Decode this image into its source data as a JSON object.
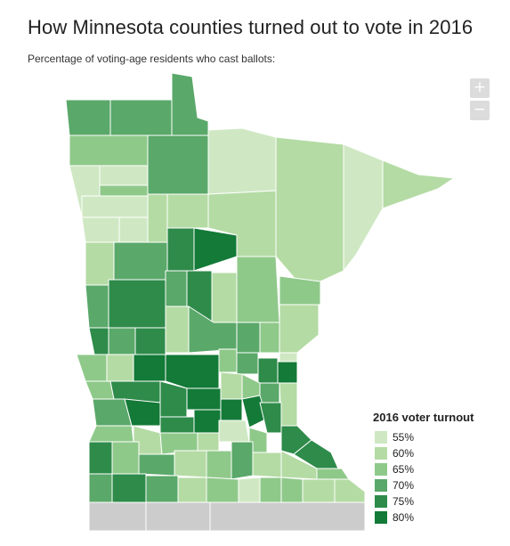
{
  "header": {
    "title": "How Minnesota counties turned out to vote in 2016",
    "subtitle": "Percentage of voting-age residents who cast ballots:"
  },
  "controls": {
    "zoom_in_label": "+",
    "zoom_out_label": "−"
  },
  "legend": {
    "title": "2016 voter turnout",
    "items": [
      {
        "label": "55%",
        "value": 55,
        "color": "#cfe8c3"
      },
      {
        "label": "60%",
        "value": 60,
        "color": "#b4dba4"
      },
      {
        "label": "65%",
        "value": 65,
        "color": "#8fc98a"
      },
      {
        "label": "70%",
        "value": 70,
        "color": "#5aa86a"
      },
      {
        "label": "75%",
        "value": 75,
        "color": "#2e8b4a"
      },
      {
        "label": "80%",
        "value": 80,
        "color": "#137a37"
      }
    ]
  },
  "map": {
    "counties": [
      {
        "turnout": 70
      },
      {
        "turnout": 70
      },
      {
        "turnout": 70
      },
      {
        "turnout": 65
      },
      {
        "turnout": 55
      },
      {
        "turnout": 55
      },
      {
        "turnout": 70
      },
      {
        "turnout": 65
      },
      {
        "turnout": 60
      },
      {
        "turnout": 60
      },
      {
        "turnout": 55
      },
      {
        "turnout": 55
      },
      {
        "turnout": 55
      },
      {
        "turnout": 55
      },
      {
        "turnout": 60
      },
      {
        "turnout": 60
      },
      {
        "turnout": 55
      },
      {
        "turnout": 60
      },
      {
        "turnout": 60
      },
      {
        "turnout": 70
      },
      {
        "turnout": 75
      },
      {
        "turnout": 80
      },
      {
        "turnout": 65
      },
      {
        "turnout": 65
      },
      {
        "turnout": 60
      },
      {
        "turnout": 70
      },
      {
        "turnout": 75
      },
      {
        "turnout": 70
      },
      {
        "turnout": 75
      },
      {
        "turnout": 60
      },
      {
        "turnout": 60
      },
      {
        "turnout": 75
      },
      {
        "turnout": 70
      },
      {
        "turnout": 75
      },
      {
        "turnout": 70
      },
      {
        "turnout": 70
      },
      {
        "turnout": 65
      },
      {
        "turnout": 55
      },
      {
        "turnout": 65
      },
      {
        "turnout": 60
      },
      {
        "turnout": 80
      },
      {
        "turnout": 80
      },
      {
        "turnout": 65
      },
      {
        "turnout": 70
      },
      {
        "turnout": 75
      },
      {
        "turnout": 80
      },
      {
        "turnout": 65
      },
      {
        "turnout": 75
      },
      {
        "turnout": 75
      },
      {
        "turnout": 80
      },
      {
        "turnout": 60
      },
      {
        "turnout": 65
      },
      {
        "turnout": 70
      },
      {
        "turnout": 60
      },
      {
        "turnout": 70
      },
      {
        "turnout": 80
      },
      {
        "turnout": 75
      },
      {
        "turnout": 80
      },
      {
        "turnout": 80
      },
      {
        "turnout": 80
      },
      {
        "turnout": 75
      },
      {
        "turnout": 65
      },
      {
        "turnout": 60
      },
      {
        "turnout": 65
      },
      {
        "turnout": 60
      },
      {
        "turnout": 55
      },
      {
        "turnout": 65
      },
      {
        "turnout": 75
      },
      {
        "turnout": 75
      },
      {
        "turnout": 75
      },
      {
        "turnout": 65
      },
      {
        "turnout": 70
      },
      {
        "turnout": 60
      },
      {
        "turnout": 65
      },
      {
        "turnout": 70
      },
      {
        "turnout": 60
      },
      {
        "turnout": 60
      },
      {
        "turnout": 65
      },
      {
        "turnout": 70
      },
      {
        "turnout": 75
      },
      {
        "turnout": 70
      },
      {
        "turnout": 60
      },
      {
        "turnout": 65
      },
      {
        "turnout": 55
      },
      {
        "turnout": 65
      },
      {
        "turnout": 65
      },
      {
        "turnout": 60
      },
      {
        "turnout": 60
      }
    ]
  }
}
